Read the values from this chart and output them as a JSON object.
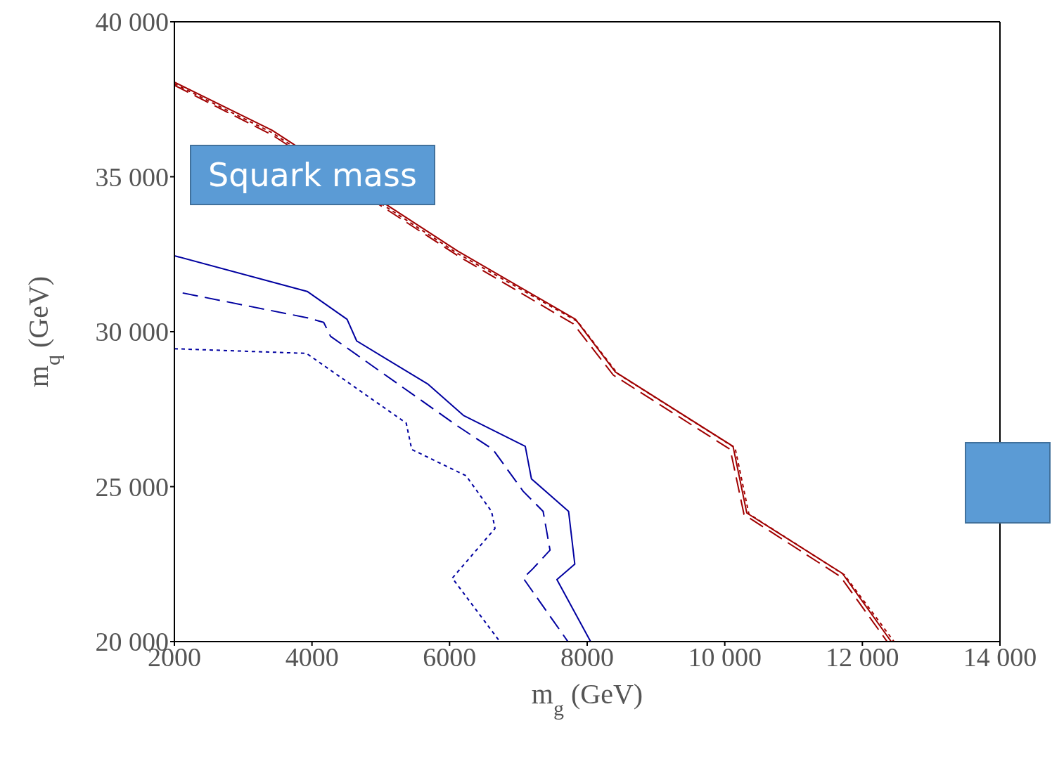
{
  "chart_data": {
    "type": "line",
    "xlabel": "m$_{g}$ (GeV)",
    "ylabel": "m$_{q}$ (GeV)",
    "xlim": [
      2000,
      14000
    ],
    "ylim": [
      20000,
      40000
    ],
    "xticks": [
      2000,
      4000,
      6000,
      8000,
      {
        "value": 10000,
        "label": "10 000"
      },
      {
        "value": 12000,
        "label": "12 000"
      },
      {
        "value": 14000,
        "label": "14 000"
      }
    ],
    "yticks": [
      {
        "value": 20000,
        "label": "20 000"
      },
      {
        "value": 25000,
        "label": "25 000"
      },
      {
        "value": 30000,
        "label": "30 000"
      },
      {
        "value": 35000,
        "label": "35 000"
      },
      {
        "value": 40000,
        "label": "40 000"
      }
    ],
    "grid": false,
    "legend": false,
    "annotations": [
      "Squark mass"
    ],
    "series": [
      {
        "color": "#0000a0",
        "line_style": "solid",
        "x": [
          2000,
          3930,
          4510,
          4650,
          5690,
          6200,
          7100,
          7190,
          7730,
          7820,
          7560,
          8050
        ],
        "values": [
          32450,
          31300,
          30400,
          29700,
          28300,
          27300,
          26300,
          25250,
          24200,
          22500,
          22000,
          20000
        ]
      },
      {
        "color": "#0000a0",
        "line_style": "dashed",
        "x": [
          2120,
          3930,
          4170,
          4270,
          6120,
          6630,
          7070,
          7360,
          7460,
          7210,
          7070,
          7720
        ],
        "values": [
          31250,
          30450,
          30300,
          29850,
          26950,
          26200,
          24850,
          24200,
          22950,
          22350,
          22050,
          20000
        ]
      },
      {
        "color": "#0000a0",
        "line_style": "dotted",
        "x": [
          2000,
          3920,
          5370,
          5450,
          6240,
          6610,
          6660,
          6040,
          6730
        ],
        "values": [
          29450,
          29300,
          27050,
          26200,
          25350,
          24200,
          23650,
          22050,
          20000
        ]
      },
      {
        "color": "#a00000",
        "line_style": "solid",
        "x": [
          2000,
          3420,
          6120,
          7830,
          8410,
          10120,
          10320,
          11710,
          12420
        ],
        "values": [
          38050,
          36500,
          32600,
          30400,
          28700,
          26300,
          24150,
          22200,
          20000
        ]
      },
      {
        "color": "#a00000",
        "line_style": "dashed",
        "x": [
          2000,
          3420,
          6120,
          7800,
          8380,
          10080,
          10280,
          11680,
          12360
        ],
        "values": [
          37950,
          36350,
          32450,
          30250,
          28600,
          26200,
          24100,
          22100,
          20000
        ]
      },
      {
        "color": "#a00000",
        "line_style": "dotted",
        "x": [
          2000,
          3420,
          6120,
          7860,
          8440,
          10150,
          10350,
          11740,
          12460
        ],
        "values": [
          38000,
          36420,
          32520,
          30330,
          28650,
          26250,
          24120,
          22150,
          20000
        ]
      }
    ]
  }
}
